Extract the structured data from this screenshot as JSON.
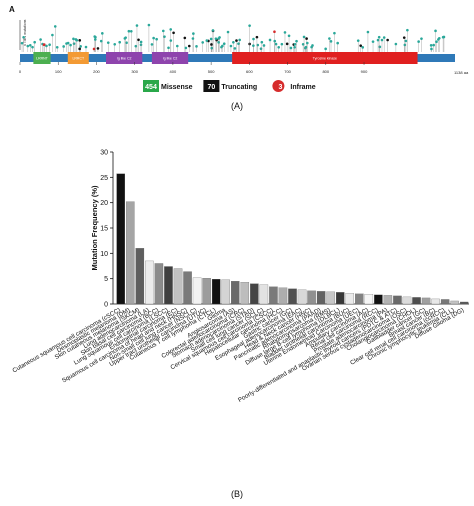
{
  "panel_a": {
    "letter": "A",
    "caption": "(A)",
    "ylabel": "# TIE1 mutations",
    "protein_length": 1138,
    "axis_end_label": "1138 aa",
    "ticks": [
      "0",
      "100",
      "200",
      "300",
      "400",
      "500",
      "600",
      "700",
      "800",
      "900"
    ],
    "domains": [
      {
        "name": "LRRNT",
        "start": 35,
        "end": 80,
        "color": "#4caf50"
      },
      {
        "name": "LRRCT",
        "start": 125,
        "end": 180,
        "color": "#f39a34"
      },
      {
        "name": "Ig like C2",
        "start": 225,
        "end": 320,
        "color": "#8e44ad"
      },
      {
        "name": "Ig like C2",
        "start": 345,
        "end": 440,
        "color": "#8e44ad"
      },
      {
        "name": "Tyrosine kinase",
        "start": 555,
        "end": 1040,
        "color": "#e02020"
      }
    ],
    "legend": [
      {
        "count": "454",
        "label": "Missense",
        "color": "#2aa84a"
      },
      {
        "count": "70",
        "label": "Truncating",
        "color": "#111111"
      },
      {
        "count": "3",
        "label": "Inframe",
        "color": "#d62c2c"
      }
    ]
  },
  "panel_b": {
    "letter": "B",
    "caption": "(B)"
  },
  "chart_data": {
    "type": "bar",
    "ylabel": "Mutation Frequency (%)",
    "xlabel": "",
    "ylim": [
      0,
      30
    ],
    "yticks": [
      0,
      5,
      10,
      15,
      20,
      25,
      30
    ],
    "categories": [
      "Cutaneous squamous cell carcinoma (cSCC)",
      "Desmoplastic melanoma (DM)",
      "Skin cutaneous melanoma (SKCM)",
      "Lung adenocarcinoma (LA)",
      "Skin basal cell carcinoma (BCC)",
      "Lung squamous cell carcinoma (LSCC)",
      "Endometrial carcinoma (EC)",
      "Squamous cell carcinoma of head and neck (HNSC)",
      "Non-small cell lung cancer (NSCLC)",
      "Upper tract urothelial carcinoma (UTUC)",
      "Cutaneous T cell lymphoma (CTCL)",
      "Glioma",
      "Angiosarcoma (AS)",
      "Colorectal adenocarcinoma (CRC)",
      "Stomach adenocarcinoma (STAD)",
      "Small cell lung cancer (SCLC)",
      "Cervical squamous cell carcinoma (CSCC)",
      "Hepatocellular carcinoma (HCC)",
      "Gastric cancer (GC)",
      "Esophageal adenocarcinoma (EAC)",
      "Head & Neck cancer (HNC)",
      "Pancreatic adenocarcinoma (PAAD)",
      "Rhabdomyosarcoma (RMS)",
      "Diffuse large B-cell lymphoma (DLBCL)",
      "Bladder urothelial carcinoma (BUC)",
      "Uterine Endometrioid Carcinoma (UEC)",
      "Ampullary carcinoma (AC)",
      "Renal cell carcinoma (RCC)",
      "Prostate adenocarcinoma (PA)",
      "Poorly-differentiated and anaplastic thyroid cancers (PDTC & ATC)",
      "Ovarian serous cystadenocarcinoma (OSC)",
      "Cholangiocarcinoma (CHOL)",
      "Gallbladder cancer (GC)",
      "Breast cancer (BC)",
      "Clear cell renal cell carcinoma (ccRCC)",
      "Chronic lymphocytic leukemia (CLL)",
      "Diffuse Glioma (DG)"
    ],
    "values": [
      25.7,
      20.2,
      11.0,
      8.5,
      8.0,
      7.4,
      7.0,
      6.4,
      5.2,
      5.1,
      4.9,
      4.8,
      4.5,
      4.3,
      4.0,
      3.8,
      3.4,
      3.2,
      3.0,
      2.8,
      2.6,
      2.5,
      2.4,
      2.3,
      2.1,
      2.0,
      1.9,
      1.8,
      1.7,
      1.6,
      1.4,
      1.3,
      1.2,
      1.0,
      0.9,
      0.6,
      0.4
    ],
    "colors": [
      "#111111",
      "#a5a5a5",
      "#5e5e5e",
      "#ececec",
      "#8c8c8c",
      "#404040",
      "#c2c2c2",
      "#7a7a7a",
      "#f2f2f2",
      "#9c9c9c",
      "#111111",
      "#d4d4d4",
      "#6a6a6a",
      "#bdbdbd",
      "#454545",
      "#e2e2e2",
      "#7a7a7a",
      "#adadad",
      "#505050",
      "#d8d8d8",
      "#909090",
      "#636363",
      "#c7c7c7",
      "#383838",
      "#eaeaea",
      "#828282",
      "#f5f5f5",
      "#111111",
      "#b2b2b2",
      "#6a6a6a",
      "#dcdcdc",
      "#4e4e4e",
      "#a0a0a0",
      "#e8e8e8",
      "#787878",
      "#c4c4c4",
      "#5a5a5a"
    ]
  }
}
